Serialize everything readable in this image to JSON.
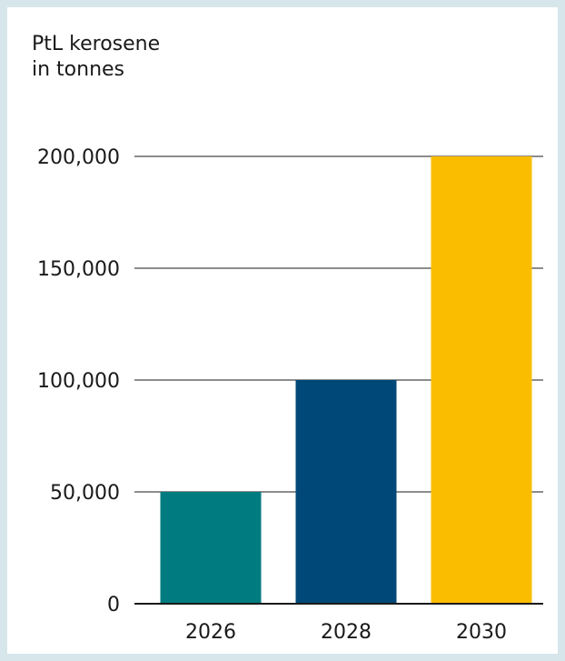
{
  "chart_data": {
    "type": "bar",
    "ylabel_lines": [
      "PtL kerosene",
      "in tonnes"
    ],
    "categories": [
      "2026",
      "2028",
      "2030"
    ],
    "values": [
      50000,
      100000,
      200000
    ],
    "colors": [
      "#007b80",
      "#004877",
      "#fbbd00"
    ],
    "yticks": [
      0,
      50000,
      100000,
      150000,
      200000
    ],
    "ytick_labels": [
      "0",
      "50,000",
      "100,000",
      "150,000",
      "200,000"
    ],
    "ylim": [
      0,
      200000
    ],
    "grid": true,
    "legend": "none"
  }
}
